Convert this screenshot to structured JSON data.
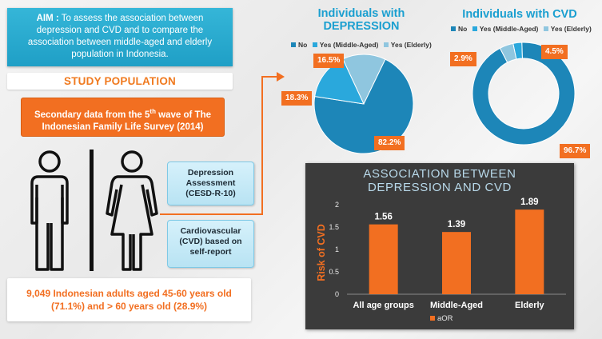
{
  "aim": {
    "label": "AIM :",
    "text": "To assess the association between depression and CVD and to compare the association between middle-aged and elderly population in Indonesia."
  },
  "study": {
    "heading": "STUDY POPULATION",
    "source_line1": "Secondary data from the 5",
    "source_sup": "th",
    "source_line1b": " wave of The",
    "source_line2": "Indonesian Family Life Survey (2014)",
    "depression_box": [
      "Depression",
      "Assessment",
      "(CESD-R-10)"
    ],
    "cvd_box": [
      "Cardiovascular",
      "(CVD) based on",
      "self-report"
    ],
    "population_line1": "9,049 Indonesian adults aged 45-60 years old",
    "population_line2": "(71.1%) and > 60 years old (28.9%)"
  },
  "icons": {
    "man": "man-icon",
    "woman": "woman-icon",
    "arrow": "arrow-icon"
  },
  "colors": {
    "no": "#1d86b8",
    "middle": "#2aa8dc",
    "elderly": "#8fc6df",
    "orange": "#f26f21",
    "bar": "#f26f21"
  },
  "chart_data": [
    {
      "type": "pie",
      "title_line1": "Individuals with",
      "title_line2": "DEPRESSION",
      "legend": [
        "No",
        "Yes (Middle-Aged)",
        "Yes (Elderly)"
      ],
      "values": [
        82.2,
        18.3,
        16.5
      ],
      "labels": [
        "82.2%",
        "18.3%",
        "16.5%"
      ]
    },
    {
      "type": "pie",
      "title": "Individuals with CVD",
      "legend": [
        "No",
        "Yes (Middle-Aged)",
        "Yes (Elderly)"
      ],
      "values": [
        96.7,
        2.9,
        4.5
      ],
      "labels": [
        "96.7%",
        "2.9%",
        "4.5%"
      ]
    },
    {
      "type": "bar",
      "title_line1": "ASSOCIATION BETWEEN",
      "title_line2": "DEPRESSION AND CVD",
      "categories": [
        "All age groups",
        "Middle-Aged",
        "Elderly"
      ],
      "values": [
        1.56,
        1.39,
        1.89
      ],
      "data_labels": [
        "1.56",
        "1.39",
        "1.89"
      ],
      "ylabel": "Risk of CVD",
      "yticks": [
        "0",
        "0.5",
        "1",
        "1.5",
        "2"
      ],
      "ylim": [
        0,
        2
      ],
      "legend": "aOR"
    }
  ]
}
